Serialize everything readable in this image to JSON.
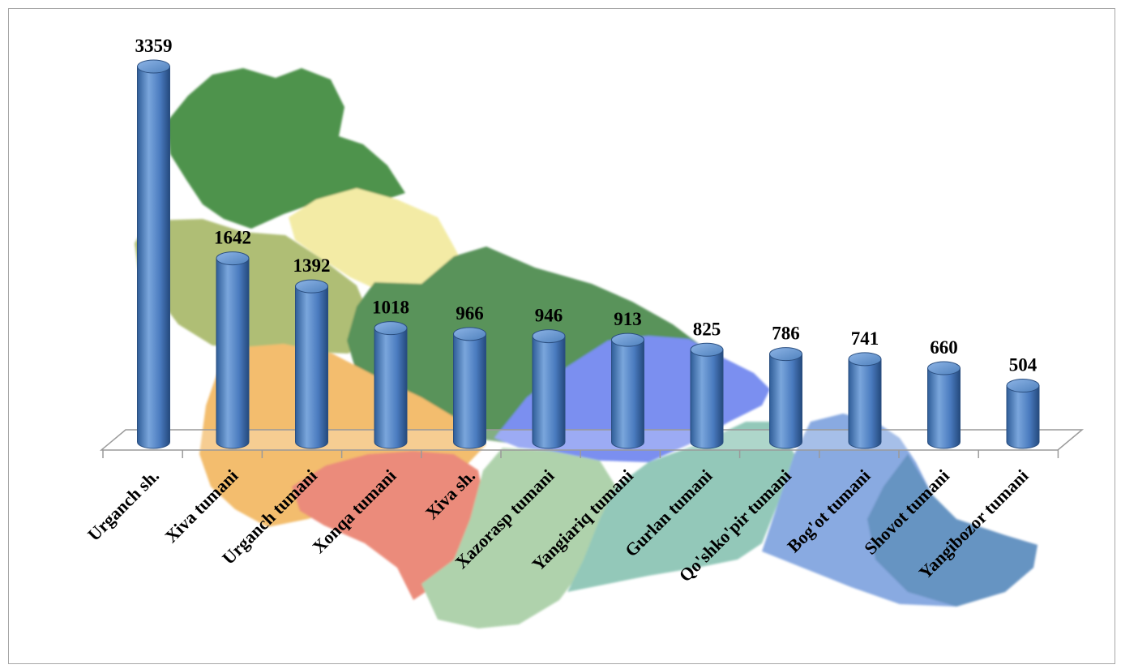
{
  "chart_data": {
    "type": "bar",
    "categories": [
      "Urganch sh.",
      "Xiva tumani",
      "Urganch tumani",
      "Xonqa tumani",
      "Xiva sh.",
      "Xazorasp tumani",
      "Yangiariq tumani",
      "Gurlan tumani",
      "Qo'shko'pir tumani",
      "Bog'ot tumani",
      "Shovot tumani",
      "Yangibozor tumani"
    ],
    "values": [
      3359,
      1642,
      1392,
      1018,
      966,
      946,
      913,
      825,
      786,
      741,
      660,
      504
    ],
    "data_labels": [
      "3359",
      "1642",
      "1392",
      "1018",
      "966",
      "946",
      "913",
      "825",
      "786",
      "741",
      "660",
      "504"
    ],
    "bar_style": "3d-cylinder",
    "bar_color": "#4f81bd",
    "background": "map of Khorezm region districts",
    "grid": false,
    "legend": "none",
    "ylim": [
      0,
      3400
    ]
  }
}
